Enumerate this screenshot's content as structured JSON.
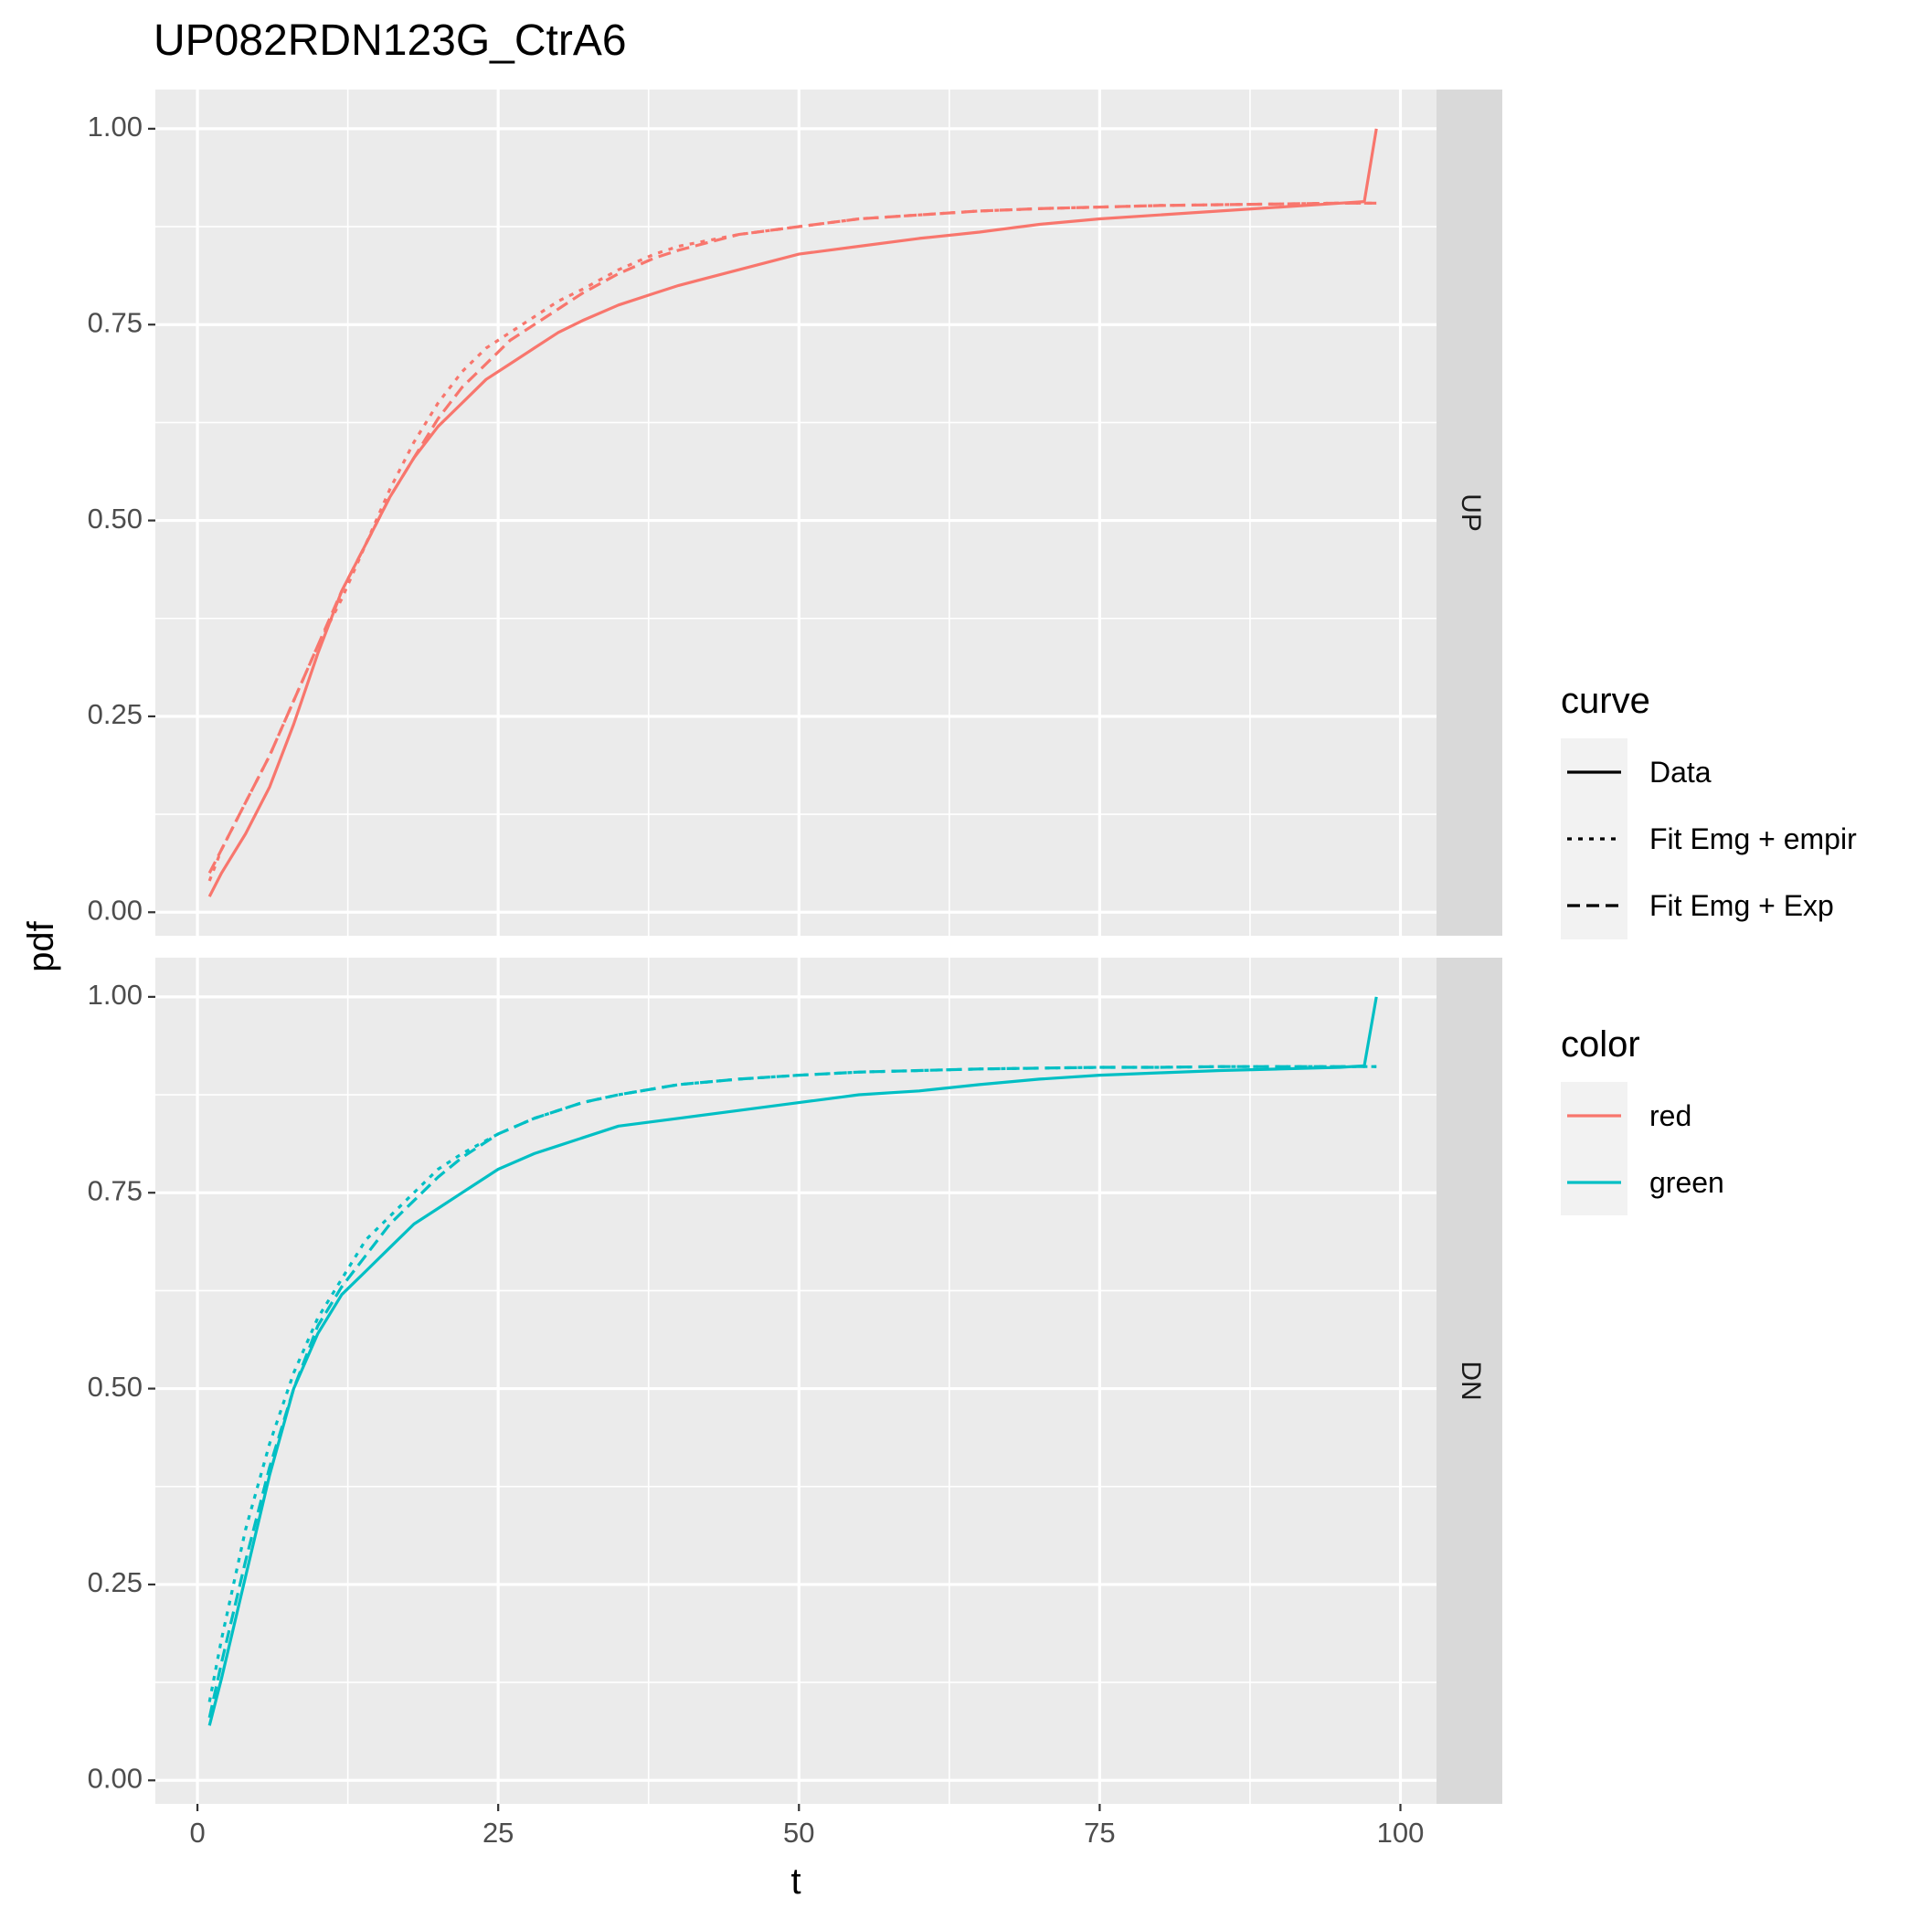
{
  "chart_data": {
    "type": "line",
    "title": "UP082RDN123G_CtrA6",
    "xlabel": "t",
    "ylabel": "pdf",
    "xlim": [
      -3.5,
      103
    ],
    "ylim": [
      -0.03,
      1.05
    ],
    "x_ticks": [
      {
        "value": 0,
        "label": "0"
      },
      {
        "value": 25,
        "label": "25"
      },
      {
        "value": 50,
        "label": "50"
      },
      {
        "value": 75,
        "label": "75"
      },
      {
        "value": 100,
        "label": "100"
      }
    ],
    "y_ticks": [
      {
        "value": 0,
        "label": "0.00"
      },
      {
        "value": 0.25,
        "label": "0.25"
      },
      {
        "value": 0.5,
        "label": "0.50"
      },
      {
        "value": 0.75,
        "label": "0.75"
      },
      {
        "value": 1.0,
        "label": "1.00"
      }
    ],
    "grid": true,
    "legend_placement": "right",
    "legends": [
      {
        "title": "curve",
        "entries": [
          {
            "label": "Data",
            "dash": "solid"
          },
          {
            "label": "Fit Emg + empir",
            "dash": "dotted"
          },
          {
            "label": "Fit Emg + Exp",
            "dash": "dashed"
          }
        ]
      },
      {
        "title": "color",
        "entries": [
          {
            "label": "red",
            "color": "#F8766D"
          },
          {
            "label": "green",
            "color": "#00BFC4"
          }
        ]
      }
    ],
    "panels": [
      {
        "strip": "UP",
        "color": "#F8766D",
        "series": [
          {
            "name": "Data",
            "dash": "solid",
            "x": [
              1,
              2,
              4,
              6,
              8,
              10,
              12,
              14,
              16,
              18,
              20,
              22,
              24,
              26,
              28,
              30,
              32,
              35,
              38,
              40,
              45,
              50,
              55,
              60,
              65,
              70,
              75,
              80,
              85,
              90,
              95,
              97,
              98
            ],
            "y": [
              0.02,
              0.05,
              0.1,
              0.16,
              0.24,
              0.33,
              0.41,
              0.47,
              0.53,
              0.58,
              0.62,
              0.65,
              0.68,
              0.7,
              0.72,
              0.74,
              0.755,
              0.775,
              0.79,
              0.8,
              0.82,
              0.84,
              0.85,
              0.86,
              0.868,
              0.878,
              0.885,
              0.89,
              0.895,
              0.9,
              0.905,
              0.907,
              1.0
            ]
          },
          {
            "name": "Fit Emg + empir",
            "dash": "dotted",
            "x": [
              1,
              2,
              4,
              6,
              8,
              10,
              12,
              14,
              16,
              18,
              20,
              22,
              24,
              26,
              28,
              30,
              32,
              35,
              38,
              40,
              45,
              50,
              55,
              60,
              65,
              70,
              75,
              80,
              85,
              90,
              95,
              98
            ],
            "y": [
              0.04,
              0.08,
              0.14,
              0.2,
              0.27,
              0.34,
              0.4,
              0.47,
              0.54,
              0.6,
              0.65,
              0.69,
              0.72,
              0.74,
              0.76,
              0.78,
              0.795,
              0.82,
              0.84,
              0.85,
              0.865,
              0.875,
              0.885,
              0.89,
              0.895,
              0.898,
              0.9,
              0.902,
              0.903,
              0.904,
              0.905,
              0.905
            ]
          },
          {
            "name": "Fit Emg + Exp",
            "dash": "dashed",
            "x": [
              1,
              2,
              4,
              6,
              8,
              10,
              12,
              14,
              16,
              18,
              20,
              22,
              24,
              26,
              28,
              30,
              32,
              35,
              38,
              40,
              45,
              50,
              55,
              60,
              65,
              70,
              75,
              80,
              85,
              90,
              95,
              98
            ],
            "y": [
              0.05,
              0.08,
              0.14,
              0.2,
              0.27,
              0.34,
              0.41,
              0.47,
              0.53,
              0.58,
              0.63,
              0.67,
              0.7,
              0.73,
              0.75,
              0.77,
              0.79,
              0.815,
              0.835,
              0.845,
              0.865,
              0.875,
              0.885,
              0.89,
              0.895,
              0.898,
              0.9,
              0.902,
              0.903,
              0.904,
              0.905,
              0.905
            ]
          }
        ]
      },
      {
        "strip": "DN",
        "color": "#00BFC4",
        "series": [
          {
            "name": "Data",
            "dash": "solid",
            "x": [
              1,
              2,
              4,
              6,
              8,
              10,
              12,
              14,
              16,
              18,
              20,
              22,
              25,
              28,
              30,
              32,
              35,
              40,
              45,
              50,
              55,
              60,
              65,
              70,
              75,
              80,
              85,
              90,
              95,
              97,
              98
            ],
            "y": [
              0.07,
              0.13,
              0.26,
              0.39,
              0.5,
              0.57,
              0.62,
              0.65,
              0.68,
              0.71,
              0.73,
              0.75,
              0.78,
              0.8,
              0.81,
              0.82,
              0.835,
              0.845,
              0.855,
              0.865,
              0.875,
              0.88,
              0.888,
              0.895,
              0.9,
              0.903,
              0.906,
              0.908,
              0.91,
              0.912,
              1.0
            ]
          },
          {
            "name": "Fit Emg + empir",
            "dash": "dotted",
            "x": [
              1,
              2,
              4,
              6,
              8,
              10,
              12,
              14,
              16,
              18,
              20,
              22,
              25,
              28,
              30,
              32,
              35,
              40,
              45,
              50,
              55,
              60,
              65,
              70,
              75,
              80,
              85,
              90,
              95,
              98
            ],
            "y": [
              0.1,
              0.18,
              0.32,
              0.43,
              0.52,
              0.59,
              0.64,
              0.69,
              0.72,
              0.75,
              0.78,
              0.8,
              0.825,
              0.845,
              0.855,
              0.865,
              0.875,
              0.888,
              0.895,
              0.9,
              0.904,
              0.906,
              0.908,
              0.909,
              0.91,
              0.91,
              0.911,
              0.911,
              0.911,
              0.911
            ]
          },
          {
            "name": "Fit Emg + Exp",
            "dash": "dashed",
            "x": [
              1,
              2,
              4,
              6,
              8,
              10,
              12,
              14,
              16,
              18,
              20,
              22,
              25,
              28,
              30,
              32,
              35,
              40,
              45,
              50,
              55,
              60,
              65,
              70,
              75,
              80,
              85,
              90,
              95,
              98
            ],
            "y": [
              0.08,
              0.15,
              0.28,
              0.4,
              0.5,
              0.58,
              0.63,
              0.67,
              0.71,
              0.74,
              0.77,
              0.795,
              0.825,
              0.845,
              0.855,
              0.865,
              0.875,
              0.888,
              0.895,
              0.9,
              0.904,
              0.906,
              0.908,
              0.909,
              0.91,
              0.91,
              0.911,
              0.911,
              0.911,
              0.911
            ]
          }
        ]
      }
    ]
  }
}
